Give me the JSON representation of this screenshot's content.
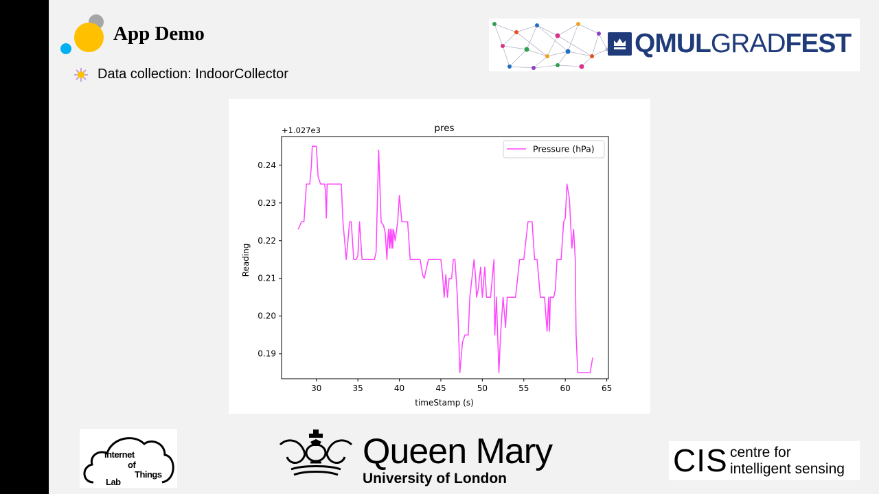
{
  "slide": {
    "title": "App Demo",
    "bullet": "Data collection: IndoorCollector"
  },
  "banner": {
    "bold1": "QMUL",
    "light": "GRAD",
    "bold2": "FEST"
  },
  "logos": {
    "iot": {
      "w1": "Internet",
      "w2": "of",
      "w3": "Things",
      "w4": "Lab"
    },
    "qm": {
      "name": "Queen Mary",
      "sub": "University of London"
    },
    "cis": {
      "abbr": "CIS",
      "line1": "centre for",
      "line2": "intelligent sensing"
    }
  },
  "colors": {
    "line": "#ff44ff",
    "accent_yellow": "#ffc000",
    "accent_blue": "#00b0f0",
    "qmul_navy": "#1f3b7a"
  },
  "chart_data": {
    "type": "line",
    "title": "pres",
    "xlabel": "timeStamp (s)",
    "ylabel": "Reading",
    "offset_label": "+1.027e3",
    "xlim": [
      25.8,
      65.2
    ],
    "ylim": [
      0.1834,
      0.2476
    ],
    "xticks": [
      30,
      35,
      40,
      45,
      50,
      55,
      60,
      65
    ],
    "xtick_labels": [
      "30",
      "35",
      "40",
      "45",
      "50",
      "55",
      "60",
      "65"
    ],
    "yticks": [
      0.19,
      0.2,
      0.21,
      0.22,
      0.23,
      0.24
    ],
    "ytick_labels": [
      "0.19",
      "0.20",
      "0.21",
      "0.22",
      "0.23",
      "0.24"
    ],
    "legend_position": "top-right",
    "series": [
      {
        "name": "Pressure (hPa)",
        "x": [
          27.8,
          28.2,
          28.5,
          28.8,
          29.0,
          29.2,
          29.4,
          29.5,
          30.0,
          30.2,
          30.5,
          31.0,
          31.1,
          31.2,
          31.3,
          31.5,
          32.0,
          32.5,
          33.0,
          33.2,
          33.6,
          34.0,
          34.2,
          34.5,
          34.8,
          35.0,
          35.2,
          35.5,
          36.0,
          36.5,
          37.0,
          37.2,
          37.5,
          37.8,
          38.1,
          38.3,
          38.5,
          38.6,
          38.7,
          38.8,
          38.9,
          39.0,
          39.1,
          39.2,
          39.3,
          39.5,
          39.8,
          40.0,
          40.3,
          40.5,
          41.0,
          41.3,
          41.5,
          42.0,
          42.5,
          42.8,
          43.0,
          43.5,
          44.0,
          44.5,
          44.8,
          45.0,
          45.2,
          45.4,
          45.6,
          45.8,
          46.0,
          46.3,
          46.5,
          46.7,
          47.0,
          47.3,
          47.6,
          47.9,
          48.1,
          48.3,
          48.5,
          49.0,
          49.2,
          49.3,
          49.5,
          49.8,
          50.0,
          50.3,
          50.5,
          50.8,
          51.0,
          51.4,
          51.5,
          51.7,
          52.0,
          52.2,
          52.5,
          52.8,
          53.0,
          53.2,
          53.5,
          54.0,
          54.5,
          55.0,
          55.5,
          56.0,
          56.3,
          56.6,
          57.0,
          57.5,
          57.8,
          58.0,
          58.1,
          58.2,
          58.4,
          58.6,
          58.8,
          59.0,
          59.5,
          59.8,
          60.0,
          60.2,
          60.5,
          60.8,
          61.0,
          61.2,
          61.3,
          61.5,
          62.0,
          62.5,
          63.0,
          63.3
        ],
        "values": [
          0.223,
          0.225,
          0.225,
          0.235,
          0.235,
          0.235,
          0.24,
          0.245,
          0.245,
          0.237,
          0.235,
          0.235,
          0.233,
          0.226,
          0.235,
          0.235,
          0.235,
          0.235,
          0.235,
          0.225,
          0.215,
          0.225,
          0.225,
          0.215,
          0.215,
          0.216,
          0.225,
          0.215,
          0.215,
          0.215,
          0.215,
          0.217,
          0.244,
          0.225,
          0.224,
          0.222,
          0.215,
          0.22,
          0.223,
          0.218,
          0.223,
          0.218,
          0.223,
          0.218,
          0.223,
          0.22,
          0.225,
          0.232,
          0.225,
          0.225,
          0.225,
          0.215,
          0.215,
          0.215,
          0.215,
          0.211,
          0.21,
          0.215,
          0.215,
          0.215,
          0.215,
          0.215,
          0.211,
          0.205,
          0.211,
          0.205,
          0.21,
          0.21,
          0.215,
          0.215,
          0.205,
          0.185,
          0.193,
          0.195,
          0.195,
          0.195,
          0.205,
          0.215,
          0.21,
          0.205,
          0.207,
          0.213,
          0.205,
          0.213,
          0.205,
          0.205,
          0.205,
          0.215,
          0.195,
          0.205,
          0.185,
          0.195,
          0.205,
          0.197,
          0.205,
          0.205,
          0.205,
          0.205,
          0.215,
          0.215,
          0.225,
          0.225,
          0.215,
          0.215,
          0.205,
          0.205,
          0.196,
          0.205,
          0.196,
          0.205,
          0.205,
          0.205,
          0.207,
          0.215,
          0.215,
          0.225,
          0.226,
          0.235,
          0.231,
          0.218,
          0.223,
          0.215,
          0.195,
          0.185,
          0.185,
          0.185,
          0.185,
          0.189
        ]
      }
    ]
  }
}
